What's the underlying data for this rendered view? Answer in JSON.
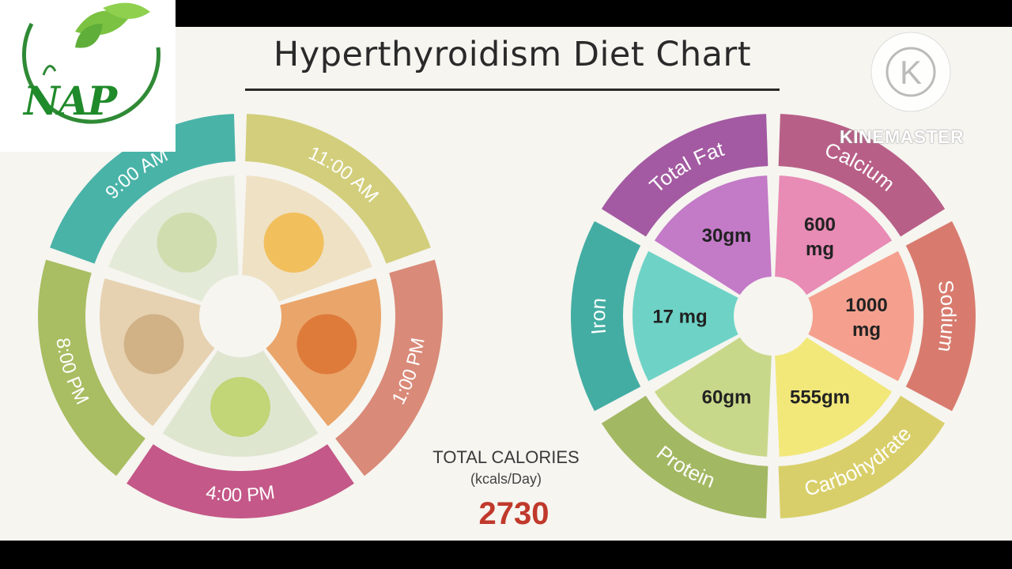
{
  "title": "Hyperthyroidism Diet Chart",
  "meal_times": [
    "9:00 AM",
    "11:00 AM",
    "1:00 PM",
    "4:00 PM",
    "8:00 PM"
  ],
  "meal_ring_colors": [
    "#49b3a8",
    "#d2ce7b",
    "#d98a78",
    "#c45888",
    "#a9bd62"
  ],
  "meal_images": [
    "green-tea-icon",
    "mango-basket-icon",
    "fish-curry-icon",
    "green-tea-cup-icon",
    "chapati-icon"
  ],
  "nutrients": [
    {
      "label": "Total Fat",
      "value": "30gm",
      "outer_color": "#a35aa2",
      "inner_color": "#c37ac7"
    },
    {
      "label": "Calcium",
      "value": "600 mg",
      "outer_color": "#b85f87",
      "inner_color": "#e88bb5"
    },
    {
      "label": "Sodium",
      "value": "1000 mg",
      "outer_color": "#d87b6e",
      "inner_color": "#f5a08e"
    },
    {
      "label": "Carbohydrate",
      "value": "555gm",
      "outer_color": "#d9cf6a",
      "inner_color": "#f2e87a"
    },
    {
      "label": "Protein",
      "value": "60gm",
      "outer_color": "#a3b862",
      "inner_color": "#c8d88a"
    },
    {
      "label": "Iron",
      "value": "17 mg",
      "outer_color": "#43ada3",
      "inner_color": "#6ed3c6"
    }
  ],
  "total_calories": {
    "label": "TOTAL CALORIES",
    "unit": "(kcals/Day)",
    "value": "2730"
  },
  "logo": {
    "text": "NAP"
  },
  "watermark": {
    "text": "KINEMASTER",
    "letter": "K"
  }
}
